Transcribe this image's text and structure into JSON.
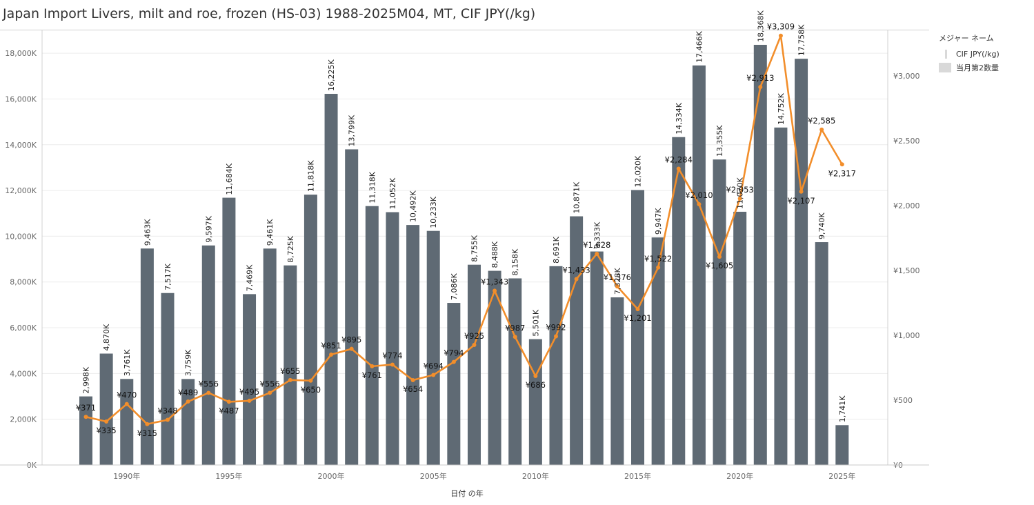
{
  "title": "Japan Import Livers, milt and roe, frozen (HS-03) 1988-2025M04, MT, CIF JPY(/kg)",
  "legend": {
    "title": "メジャー ネーム",
    "items": [
      "CIF JPY(/kg)",
      "当月第2数量"
    ]
  },
  "chart_data": {
    "type": "bar",
    "x": [
      1988,
      1989,
      1990,
      1991,
      1992,
      1993,
      1994,
      1995,
      1996,
      1997,
      1998,
      1999,
      2000,
      2001,
      2002,
      2003,
      2004,
      2005,
      2006,
      2007,
      2008,
      2009,
      2010,
      2011,
      2012,
      2013,
      2014,
      2015,
      2016,
      2017,
      2018,
      2019,
      2020,
      2021,
      2022,
      2023,
      2024,
      2025
    ],
    "xlabel": "日付 の年",
    "x_ticks": [
      {
        "year": 1990,
        "label": "1990年"
      },
      {
        "year": 1995,
        "label": "1995年"
      },
      {
        "year": 2000,
        "label": "2000年"
      },
      {
        "year": 2005,
        "label": "2005年"
      },
      {
        "year": 2010,
        "label": "2010年"
      },
      {
        "year": 2015,
        "label": "2015年"
      },
      {
        "year": 2020,
        "label": "2020年"
      },
      {
        "year": 2025,
        "label": "2025年"
      }
    ],
    "grid": true,
    "legend_position": "right",
    "series": [
      {
        "name": "当月第2数量",
        "type": "bar",
        "axis": "left",
        "color": "#5f6a74",
        "values": [
          2998,
          4870,
          3761,
          9463,
          7517,
          3759,
          9597,
          11684,
          7469,
          9461,
          8725,
          11818,
          16225,
          13799,
          11318,
          11052,
          10492,
          10233,
          7086,
          8755,
          8488,
          8158,
          5501,
          8691,
          10871,
          9333,
          7328,
          12020,
          9947,
          14334,
          17466,
          13355,
          11070,
          18368,
          14752,
          17758,
          9740,
          1741
        ],
        "labels": [
          "2,998K",
          "4,870K",
          "3,761K",
          "9,463K",
          "7,517K",
          "3,759K",
          "9,597K",
          "11,684K",
          "7,469K",
          "9,461K",
          "8,725K",
          "11,818K",
          "16,225K",
          "13,799K",
          "11,318K",
          "11,052K",
          "10,492K",
          "10,233K",
          "7,086K",
          "8,755K",
          "8,488K",
          "8,158K",
          "5,501K",
          "8,691K",
          "10,871K",
          "9,333K",
          "7,328K",
          "12,020K",
          "9,947K",
          "14,334K",
          "17,466K",
          "13,355K",
          "11,070K",
          "18,368K",
          "14,752K",
          "17,758K",
          "9,740K",
          "1,741K"
        ]
      },
      {
        "name": "CIF JPY(/kg)",
        "type": "line",
        "axis": "right",
        "color": "#f28e2b",
        "values": [
          371,
          335,
          470,
          315,
          348,
          489,
          556,
          487,
          495,
          556,
          655,
          650,
          851,
          895,
          761,
          774,
          654,
          694,
          794,
          925,
          1343,
          987,
          686,
          992,
          1433,
          1628,
          1376,
          1201,
          1522,
          2284,
          2010,
          1605,
          2053,
          2913,
          3309,
          2107,
          2585,
          2317
        ],
        "labels": [
          "¥371",
          "¥335",
          "¥470",
          "¥315",
          "¥348",
          "¥489",
          "¥556",
          "¥487",
          "¥495",
          "¥556",
          "¥655",
          "¥650",
          "¥851",
          "¥895",
          "¥761",
          "¥774",
          "¥654",
          "¥694",
          "¥794",
          "¥925",
          "¥1,343",
          "¥987",
          "¥686",
          "¥992",
          "¥1,433",
          "¥1,628",
          "¥1,376",
          "¥1,201",
          "¥1,522",
          "¥2,284",
          "¥2,010",
          "¥1,605",
          "¥2,053",
          "¥2,913",
          "¥3,309",
          "¥2,107",
          "¥2,585",
          "¥2,317"
        ]
      }
    ],
    "y_left": {
      "ylim": [
        0,
        19000
      ],
      "ticks": [
        0,
        2000,
        4000,
        6000,
        8000,
        10000,
        12000,
        14000,
        16000,
        18000
      ],
      "tick_labels": [
        "0K",
        "2,000K",
        "4,000K",
        "6,000K",
        "8,000K",
        "10,000K",
        "12,000K",
        "14,000K",
        "16,000K",
        "18,000K"
      ]
    },
    "y_right": {
      "ylim": [
        0,
        3350
      ],
      "ticks": [
        0,
        500,
        1000,
        1500,
        2000,
        2500,
        3000
      ],
      "tick_labels": [
        "¥0",
        "¥500",
        "¥1,000",
        "¥1,500",
        "¥2,000",
        "¥2,500",
        "¥3,000"
      ]
    }
  }
}
